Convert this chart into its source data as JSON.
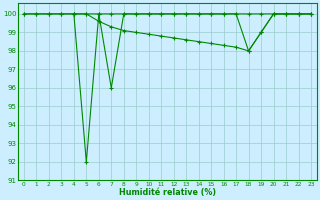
{
  "line1_x": [
    0,
    1,
    2,
    3,
    4,
    5,
    6,
    7,
    8,
    9,
    10,
    11,
    12,
    13,
    14,
    15,
    16,
    17,
    18,
    19,
    20,
    21,
    22,
    23
  ],
  "line1_y": [
    100,
    100,
    100,
    100,
    100,
    92,
    100,
    96,
    100,
    100,
    100,
    100,
    100,
    100,
    100,
    100,
    100,
    100,
    100,
    100,
    100,
    100,
    100,
    100
  ],
  "line2_x": [
    0,
    1,
    2,
    3,
    4,
    5,
    6,
    7,
    8,
    9,
    10,
    11,
    12,
    13,
    14,
    15,
    16,
    17,
    18,
    19,
    20,
    21,
    22,
    23
  ],
  "line2_y": [
    100,
    100,
    100,
    100,
    100,
    100,
    100,
    100,
    100,
    100,
    100,
    100,
    100,
    100,
    100,
    100,
    100,
    100,
    98,
    99,
    100,
    100,
    100,
    100
  ],
  "line3_x": [
    4,
    5,
    6,
    7,
    8,
    9,
    10,
    11,
    12,
    13,
    14,
    15,
    16,
    17,
    18,
    19,
    20,
    21,
    22,
    23
  ],
  "line3_y": [
    100,
    100,
    99.6,
    99.3,
    99.1,
    99.0,
    98.9,
    98.8,
    98.7,
    98.6,
    98.5,
    98.4,
    98.3,
    98.2,
    98.0,
    99.0,
    100,
    100,
    100,
    100
  ],
  "line_color": "#008800",
  "bg_color": "#cceeff",
  "grid_color": "#99cccc",
  "xlabel": "Humidité relative (%)",
  "ylim": [
    91,
    100.6
  ],
  "xlim": [
    -0.5,
    23.5
  ],
  "yticks": [
    91,
    92,
    93,
    94,
    95,
    96,
    97,
    98,
    99,
    100
  ],
  "xticks": [
    0,
    1,
    2,
    3,
    4,
    5,
    6,
    7,
    8,
    9,
    10,
    11,
    12,
    13,
    14,
    15,
    16,
    17,
    18,
    19,
    20,
    21,
    22,
    23
  ],
  "marker_size": 2.5,
  "line_width": 0.8,
  "ytick_fontsize": 5.0,
  "xtick_fontsize": 4.2,
  "xlabel_fontsize": 5.8
}
